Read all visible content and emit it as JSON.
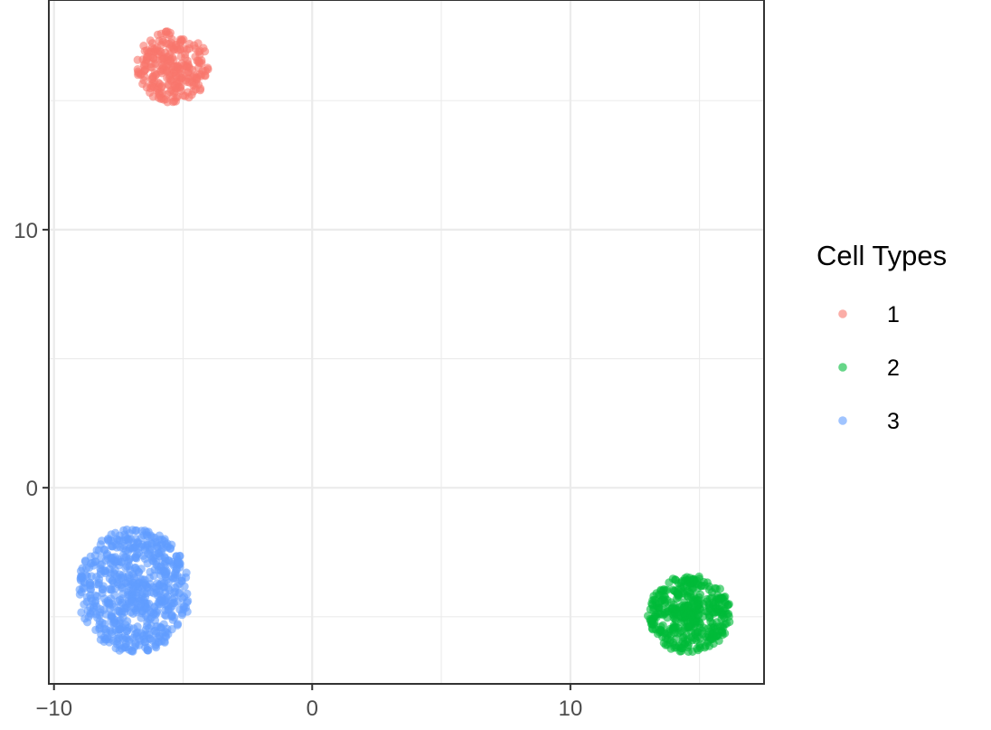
{
  "chart_data": {
    "type": "scatter",
    "title": "",
    "xlabel": "",
    "ylabel": "",
    "xlim": [
      -10.2,
      17.5
    ],
    "ylim": [
      -7.6,
      18.9
    ],
    "x_ticks": [
      -10,
      0,
      10
    ],
    "x_tick_labels": [
      "−10",
      "0",
      "10"
    ],
    "y_ticks": [
      0,
      10
    ],
    "y_tick_labels": [
      "0",
      "10"
    ],
    "grid": true,
    "legend": {
      "title": "Cell Types",
      "placement": "right"
    },
    "series": [
      {
        "name": "1",
        "color": "#F8766D",
        "center": [
          -5.4,
          16.3
        ],
        "radius": [
          1.4,
          1.4
        ],
        "n": 260,
        "seed": 11
      },
      {
        "name": "2",
        "color": "#00BA38",
        "center": [
          14.6,
          -4.9
        ],
        "radius": [
          1.6,
          1.5
        ],
        "n": 420,
        "seed": 23
      },
      {
        "name": "3",
        "color": "#619CFF",
        "center": [
          -6.9,
          -4.0
        ],
        "radius": [
          2.2,
          2.4
        ],
        "n": 650,
        "seed": 37
      }
    ]
  }
}
